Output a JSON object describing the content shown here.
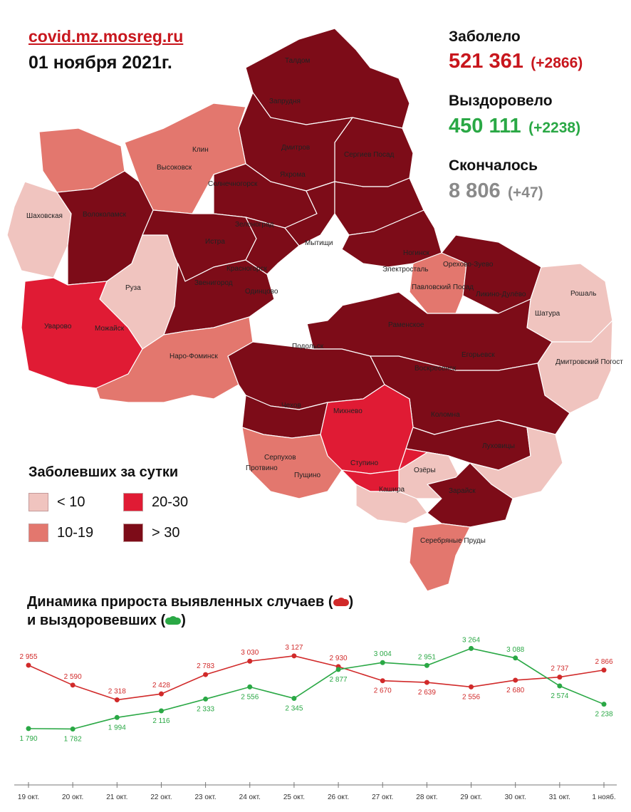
{
  "header": {
    "source": "covid.mz.mosreg.ru",
    "date": "01 ноября 2021г."
  },
  "stats": {
    "infected": {
      "label": "Заболело",
      "total": "521 361",
      "delta": "(+2866)",
      "color": "#c8161d"
    },
    "recovered": {
      "label": "Выздоровело",
      "total": "450 111",
      "delta": "(+2238)",
      "color": "#2aa845"
    },
    "died": {
      "label": "Скончалось",
      "total": "8 806",
      "delta": "(+47)",
      "color": "#8a8a8a"
    }
  },
  "map": {
    "districts": [
      {
        "name": "Талдом",
        "category": ">30"
      },
      {
        "name": "Запрудня",
        "category": ">30"
      },
      {
        "name": "Дмитров",
        "category": ">30"
      },
      {
        "name": "Сергиев Посад",
        "category": ">30"
      },
      {
        "name": "Яхрома",
        "category": ">30"
      },
      {
        "name": "Клин",
        "category": "10-19"
      },
      {
        "name": "Высоковск",
        "category": "10-19"
      },
      {
        "name": "Солнечногорск",
        "category": ">30"
      },
      {
        "name": "Волоколамск",
        "category": ">30"
      },
      {
        "name": "Шаховская",
        "category": "<10"
      },
      {
        "name": "Зеленоград",
        "category": ">30"
      },
      {
        "name": "Истра",
        "category": ">30"
      },
      {
        "name": "Мытищи",
        "category": ">30"
      },
      {
        "name": "Ногинск",
        "category": ">30"
      },
      {
        "name": "Электросталь",
        "category": ">30"
      },
      {
        "name": "Орехово-Зуево",
        "category": ">30"
      },
      {
        "name": "Павловский Посад",
        "category": "10-19"
      },
      {
        "name": "Ликино-Дулёво",
        "category": ">30"
      },
      {
        "name": "Рошаль",
        "category": "<10"
      },
      {
        "name": "Шатура",
        "category": "<10"
      },
      {
        "name": "Красногорск",
        "category": ">30"
      },
      {
        "name": "Одинцово",
        "category": ">30"
      },
      {
        "name": "Звенигород",
        "category": ">30"
      },
      {
        "name": "Руза",
        "category": "<10"
      },
      {
        "name": "Уварово",
        "category": "20-30"
      },
      {
        "name": "Можайск",
        "category": "20-30"
      },
      {
        "name": "Наро-Фоминск",
        "category": "10-19"
      },
      {
        "name": "Раменское",
        "category": ">30"
      },
      {
        "name": "Подольск",
        "category": ">30"
      },
      {
        "name": "Воскресенск",
        "category": ">30"
      },
      {
        "name": "Егорьевск",
        "category": ">30"
      },
      {
        "name": "Дмитровский Погост",
        "category": "<10"
      },
      {
        "name": "Чехов",
        "category": ">30"
      },
      {
        "name": "Михнево",
        "category": "20-30"
      },
      {
        "name": "Коломна",
        "category": ">30"
      },
      {
        "name": "Луховицы",
        "category": "<10"
      },
      {
        "name": "Серпухов",
        "category": "10-19"
      },
      {
        "name": "Пущино",
        "category": "10-19"
      },
      {
        "name": "Протвино",
        "category": "10-19"
      },
      {
        "name": "Ступино",
        "category": "20-30"
      },
      {
        "name": "Озёры",
        "category": "<10"
      },
      {
        "name": "Кашира",
        "category": "<10"
      },
      {
        "name": "Зарайск",
        "category": ">30"
      },
      {
        "name": "Серебряные Пруды",
        "category": "10-19"
      }
    ]
  },
  "legend": {
    "title": "Заболевших за сутки",
    "items": [
      {
        "label": "< 10",
        "color": "#f0c4bf"
      },
      {
        "label": "10-19",
        "color": "#e3776e"
      },
      {
        "label": "20-30",
        "color": "#e01b34"
      },
      {
        "label": "> 30",
        "color": "#7d0c18"
      }
    ]
  },
  "chart_title": {
    "line1": "Динамика прироста выявленных случаев (",
    "line1_end": ")",
    "line2": "и выздоровевших (",
    "line2_end": ")"
  },
  "chart_data": {
    "type": "line",
    "categories": [
      "19 окт.",
      "20 окт.",
      "21 окт.",
      "22 окт.",
      "23 окт.",
      "24 окт.",
      "25 окт.",
      "26 окт.",
      "27 окт.",
      "28 окт.",
      "29 окт.",
      "30 окт.",
      "31 окт.",
      "1 нояб."
    ],
    "series": [
      {
        "name": "выявленных случаев",
        "color": "#d12a2a",
        "values": [
          2955,
          2590,
          2318,
          2428,
          2783,
          3030,
          3127,
          2930,
          2670,
          2639,
          2556,
          2680,
          2737,
          2866
        ],
        "labels": [
          "2 955",
          "2 590",
          "2 318",
          "2 428",
          "2 783",
          "3 030",
          "3 127",
          "2 930",
          "2 670",
          "2 639",
          "2 556",
          "2 680",
          "2 737",
          "2 866"
        ]
      },
      {
        "name": "выздоровевших",
        "color": "#2aa845",
        "values": [
          1790,
          1782,
          1994,
          2116,
          2333,
          2556,
          2345,
          2877,
          3004,
          2951,
          3264,
          3088,
          2574,
          2238
        ],
        "labels": [
          "1 790",
          "1 782",
          "1 994",
          "2 116",
          "2 333",
          "2 556",
          "2 345",
          "2 877",
          "3 004",
          "2 951",
          "3 264",
          "3 088",
          "2 574",
          "2 238"
        ]
      }
    ],
    "ylim": [
      1500,
      3400
    ],
    "grid": false,
    "title": "",
    "xlabel": "",
    "ylabel": ""
  }
}
